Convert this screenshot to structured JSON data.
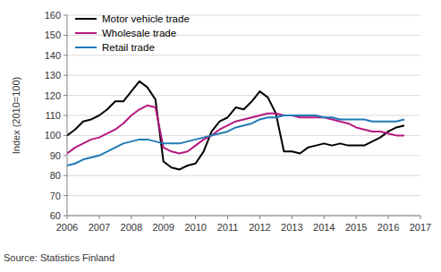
{
  "chart_data": {
    "type": "line",
    "y_label": "Index (2010=100)",
    "source": "Source: Statistics Finland",
    "x": [
      2006,
      2006.25,
      2006.5,
      2006.75,
      2007,
      2007.25,
      2007.5,
      2007.75,
      2008,
      2008.25,
      2008.5,
      2008.75,
      2009,
      2009.25,
      2009.5,
      2009.75,
      2010,
      2010.25,
      2010.5,
      2010.75,
      2011,
      2011.25,
      2011.5,
      2011.75,
      2012,
      2012.25,
      2012.5,
      2012.75,
      2013,
      2013.25,
      2013.5,
      2013.75,
      2014,
      2014.25,
      2014.5,
      2014.75,
      2015,
      2015.25,
      2015.5,
      2015.75,
      2016,
      2016.25,
      2016.5
    ],
    "series": [
      {
        "name": "Motor vehicle trade",
        "color": "#000000",
        "values": [
          100,
          103,
          107,
          108,
          110,
          113,
          117,
          117,
          122,
          127,
          124,
          118,
          87,
          84,
          83,
          85,
          86,
          92,
          102,
          107,
          109,
          114,
          113,
          117,
          122,
          119,
          111,
          92,
          92,
          91,
          94,
          95,
          96,
          95,
          96,
          95,
          95,
          95,
          97,
          99,
          102,
          104,
          105
        ]
      },
      {
        "name": "Wholesale trade",
        "color": "#b5177f",
        "values": [
          91,
          94,
          96,
          98,
          99,
          101,
          103,
          106,
          110,
          113,
          115,
          114,
          94,
          92,
          91,
          92,
          95,
          98,
          100,
          103,
          105,
          107,
          108,
          109,
          110,
          111,
          111,
          110,
          110,
          109,
          109,
          109,
          109,
          108,
          107,
          106,
          104,
          103,
          102,
          102,
          101,
          100,
          100
        ]
      },
      {
        "name": "Retail trade",
        "color": "#1f7ab5",
        "values": [
          85,
          86,
          88,
          89,
          90,
          92,
          94,
          96,
          97,
          98,
          98,
          97,
          96,
          96,
          96,
          97,
          98,
          99,
          100,
          101,
          102,
          104,
          105,
          106,
          108,
          109,
          109,
          110,
          110,
          110,
          110,
          110,
          109,
          109,
          108,
          108,
          108,
          108,
          107,
          107,
          107,
          107,
          108
        ]
      }
    ],
    "xlim": [
      2006,
      2017
    ],
    "xticks": [
      2006,
      2007,
      2008,
      2009,
      2010,
      2011,
      2012,
      2013,
      2014,
      2015,
      2016,
      2017
    ],
    "ylim": [
      60,
      160
    ],
    "yticks": [
      60,
      70,
      80,
      90,
      100,
      110,
      120,
      130,
      140,
      150,
      160
    ],
    "grid": true,
    "legend": "top-left"
  }
}
